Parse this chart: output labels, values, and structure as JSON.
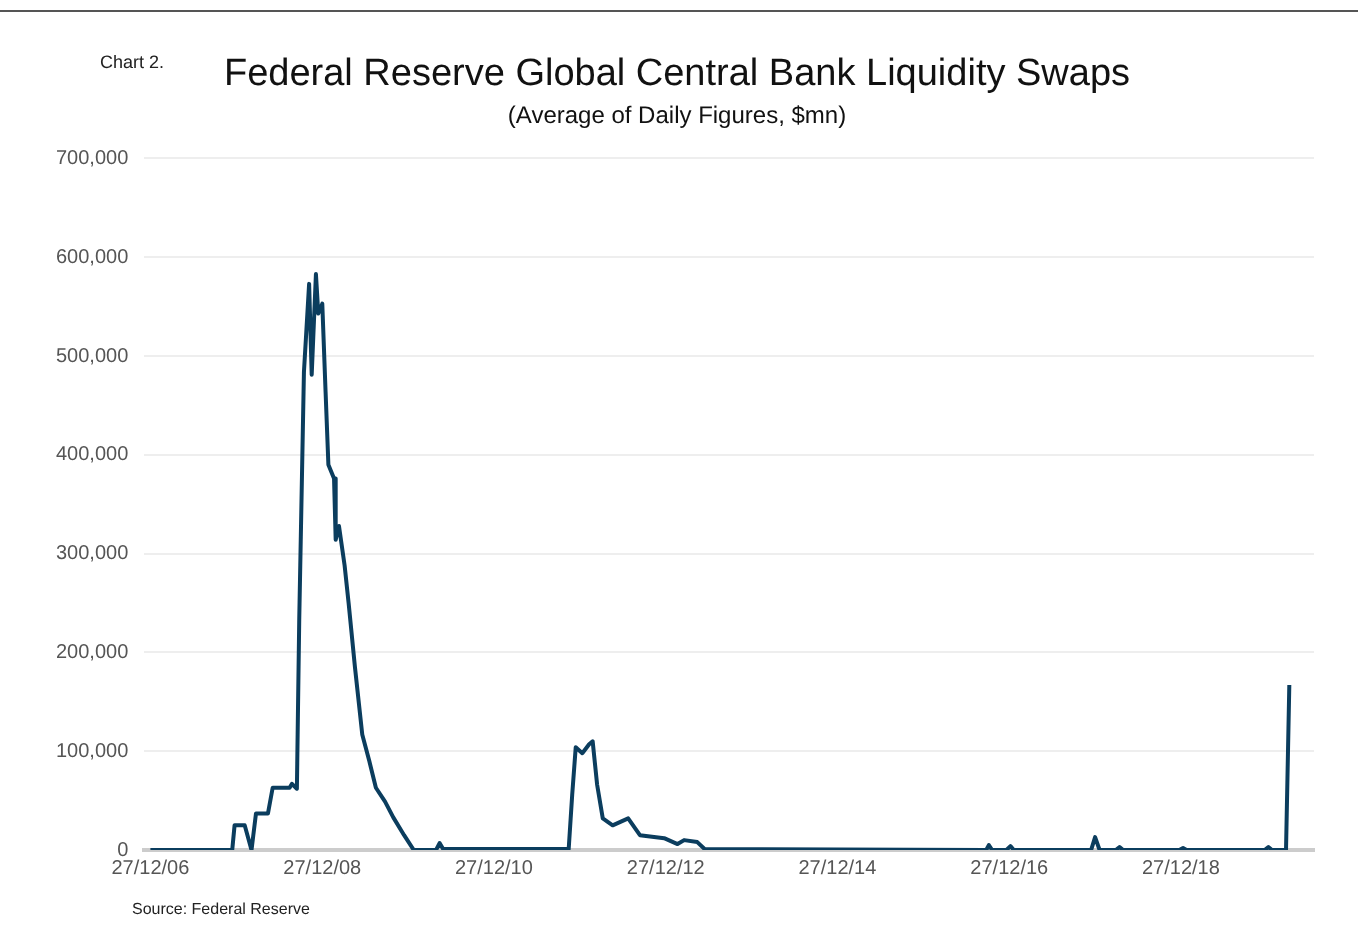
{
  "chart_data": {
    "type": "line",
    "title": "Federal Reserve Global Central Bank Liquidity Swaps",
    "subtitle": "(Average of Daily Figures, $mn)",
    "annotations": [
      "Chart 2.",
      "Source: Federal Reserve"
    ],
    "x": [
      "2006-12-27",
      "2007-12-10",
      "2007-12-20",
      "2008-02-01",
      "2008-03-01",
      "2008-03-20",
      "2008-05-10",
      "2008-05-30",
      "2008-08-10",
      "2008-08-20",
      "2008-09-10",
      "2008-09-20",
      "2008-10-10",
      "2008-11-01",
      "2008-11-12",
      "2008-11-30",
      "2008-12-10",
      "2008-12-27",
      "2009-01-10",
      "2009-01-22",
      "2009-02-15",
      "2009-02-22",
      "2009-03-08",
      "2009-04-01",
      "2009-04-18",
      "2009-05-15",
      "2009-06-15",
      "2009-07-15",
      "2009-08-12",
      "2009-09-20",
      "2009-10-25",
      "2009-12-10",
      "2010-01-20",
      "2010-04-25",
      "2010-05-10",
      "2010-05-25",
      "2011-11-10",
      "2011-11-25",
      "2011-12-10",
      "2012-01-07",
      "2012-02-05",
      "2012-02-20",
      "2012-03-10",
      "2012-04-03",
      "2012-05-15",
      "2012-07-20",
      "2012-09-08",
      "2012-12-20",
      "2013-02-15",
      "2013-03-15",
      "2013-05-10",
      "2013-06-10",
      "2016-09-20",
      "2016-10-01",
      "2016-10-15",
      "2016-12-15",
      "2017-01-01",
      "2017-01-15",
      "2017-12-10",
      "2017-12-27",
      "2018-01-15",
      "2018-03-25",
      "2018-04-10",
      "2018-04-25",
      "2018-12-20",
      "2019-01-05",
      "2019-01-20",
      "2019-12-18",
      "2020-01-03",
      "2020-01-18",
      "2020-03-18",
      "2020-04-01"
    ],
    "series": [
      {
        "color": "#0b3d5e",
        "values": [
          0,
          0,
          25000,
          25000,
          0,
          37000,
          37000,
          63000,
          63000,
          67000,
          62000,
          233000,
          484000,
          573000,
          481000,
          583000,
          543000,
          553000,
          464000,
          390000,
          376000,
          314000,
          328000,
          288000,
          250000,
          185000,
          117000,
          90000,
          63000,
          49000,
          33000,
          15000,
          0,
          0,
          7000,
          1000,
          1000,
          56000,
          104000,
          98000,
          107000,
          110000,
          66000,
          32000,
          25000,
          32000,
          15000,
          12000,
          6000,
          10000,
          8000,
          1000,
          0,
          5000,
          0,
          0,
          4000,
          0,
          0,
          13000,
          0,
          0,
          3000,
          0,
          0,
          2000,
          0,
          0,
          3000,
          0,
          0,
          167000
        ]
      }
    ],
    "xlim": [
      "2006-12-01",
      "2020-07-15"
    ],
    "xticks": [
      {
        "value": "2006-12-27",
        "label": "27/12/06"
      },
      {
        "value": "2008-12-27",
        "label": "27/12/08"
      },
      {
        "value": "2010-12-27",
        "label": "27/12/10"
      },
      {
        "value": "2012-12-27",
        "label": "27/12/12"
      },
      {
        "value": "2014-12-27",
        "label": "27/12/14"
      },
      {
        "value": "2016-12-27",
        "label": "27/12/16"
      },
      {
        "value": "2018-12-27",
        "label": "27/12/18"
      }
    ],
    "ylim": [
      0,
      700000
    ],
    "yticks": [
      {
        "value": 0,
        "label": "0"
      },
      {
        "value": 100000,
        "label": "100,000"
      },
      {
        "value": 200000,
        "label": "200,000"
      },
      {
        "value": 300000,
        "label": "300,000"
      },
      {
        "value": 400000,
        "label": "400,000"
      },
      {
        "value": 500000,
        "label": "500,000"
      },
      {
        "value": 600000,
        "label": "600,000"
      },
      {
        "value": 700000,
        "label": "700,000"
      }
    ],
    "grid": "y",
    "legend": false,
    "marker": "none",
    "line_style": "solid"
  }
}
